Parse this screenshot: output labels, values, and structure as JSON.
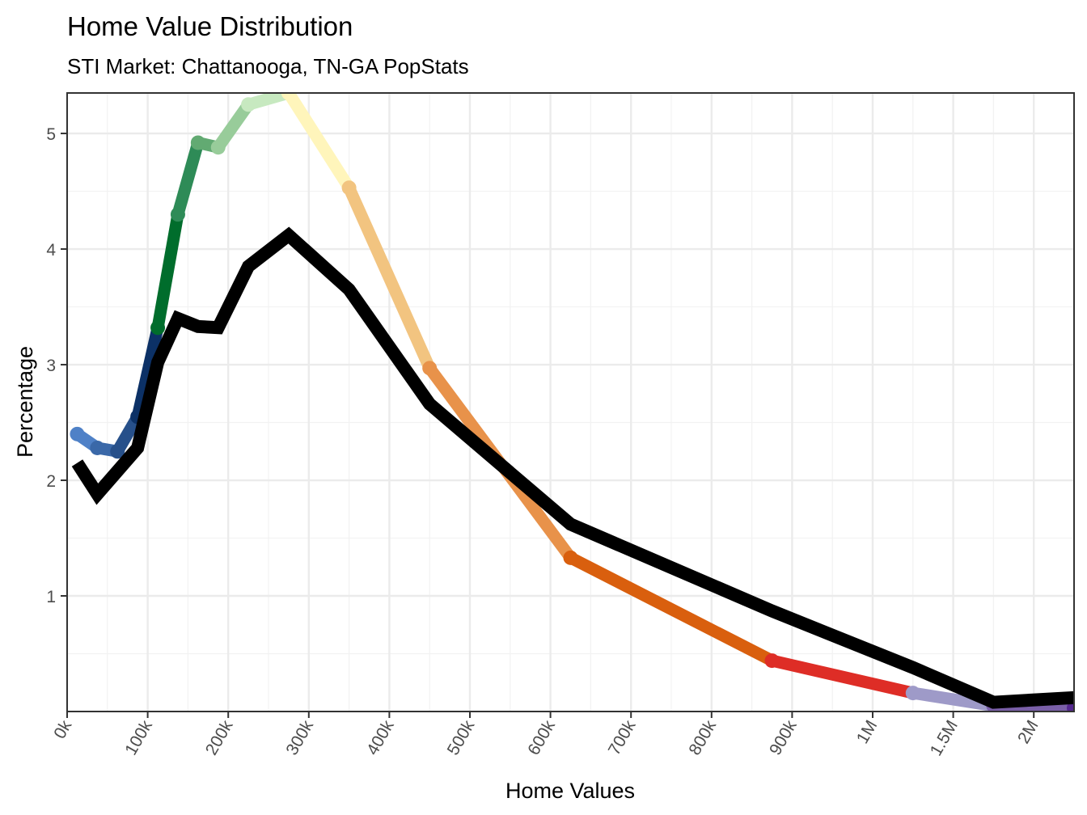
{
  "chart_data": {
    "type": "line",
    "title": "Home Value Distribution",
    "subtitle": "STI Market: Chattanooga, TN-GA PopStats",
    "xlabel": "Home Values",
    "ylabel": "Percentage",
    "x_tick_values": [
      0,
      100000,
      200000,
      300000,
      400000,
      500000,
      600000,
      700000,
      800000,
      900000,
      1000000,
      1500000,
      2000000
    ],
    "x_tick_labels": [
      "0k",
      "100k",
      "200k",
      "300k",
      "400k",
      "500k",
      "600k",
      "700k",
      "800k",
      "900k",
      "1M",
      "1.5M",
      "2M"
    ],
    "y_ticks": [
      1,
      2,
      3,
      4,
      5
    ],
    "ylim": [
      0,
      5.35
    ],
    "xlim": [
      0,
      2250000
    ],
    "grid": true,
    "x": [
      12500,
      37500,
      62500,
      87500,
      112500,
      137500,
      162500,
      187500,
      225000,
      275000,
      350000,
      450000,
      625000,
      875000,
      1250000,
      1750000,
      2250000
    ],
    "series": [
      {
        "style": "colored-gradient",
        "values": [
          2.4,
          2.28,
          2.25,
          2.55,
          3.32,
          4.3,
          4.92,
          4.88,
          5.25,
          5.35,
          4.53,
          2.97,
          1.33,
          0.44,
          0.16,
          0.05,
          0.03
        ],
        "segment_colors": [
          "#4f81c7",
          "#3a68a8",
          "#27508a",
          "#0c3166",
          "#006d2c",
          "#2e8b57",
          "#62aa72",
          "#98cc9a",
          "#c7e9c0",
          "#fff5bb",
          "#f2c480",
          "#e8924a",
          "#d95f0e",
          "#de2d26",
          "#9e9ac8",
          "#7a5fa8"
        ],
        "end_color": "#54278f"
      },
      {
        "style": "black",
        "color": "#000000",
        "values": [
          2.15,
          1.88,
          2.08,
          2.28,
          3.02,
          3.4,
          3.33,
          3.32,
          3.85,
          4.12,
          3.65,
          2.66,
          1.62,
          0.87,
          0.38,
          0.08,
          0.12
        ]
      }
    ]
  }
}
